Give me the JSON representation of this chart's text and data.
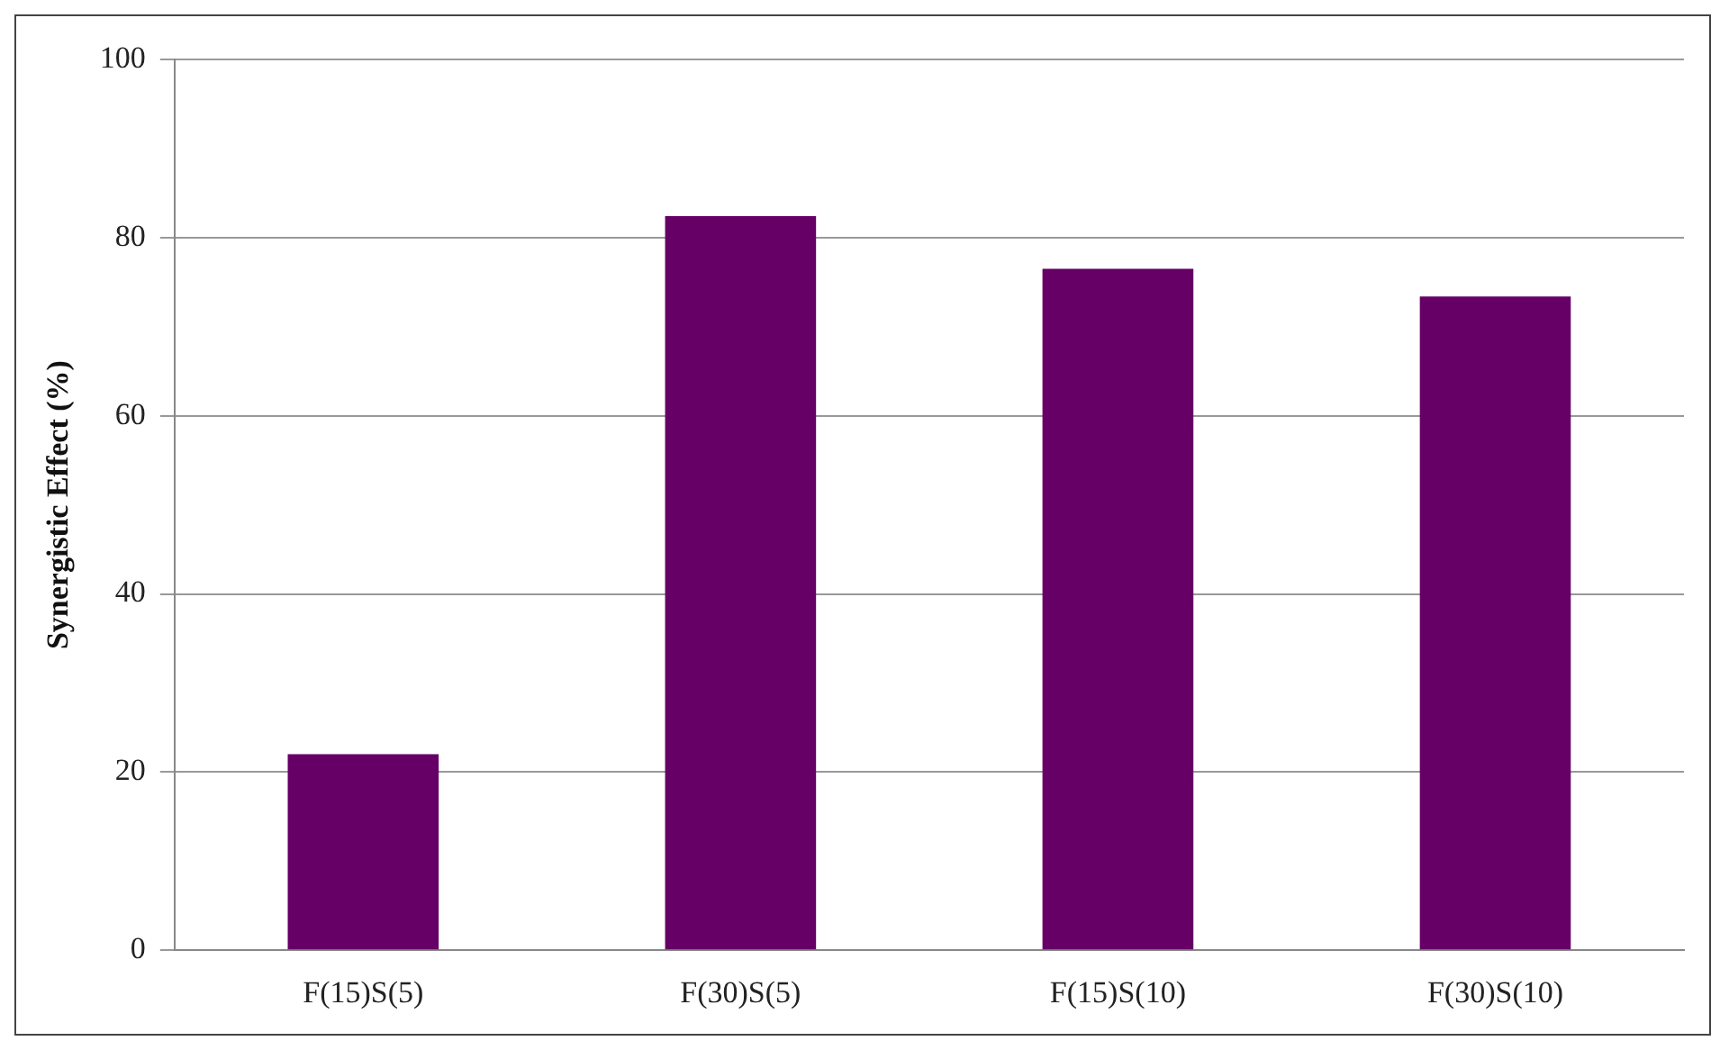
{
  "chart_data": {
    "type": "bar",
    "ylabel": "Synergistic Effect (%)",
    "categories": [
      "F(15)S(5)",
      "F(30)S(5)",
      "F(15)S(10)",
      "F(30)S(10)"
    ],
    "values": [
      22,
      82.4,
      76.5,
      73.4
    ],
    "color": "#660066",
    "ylim": [
      0,
      100
    ],
    "yticks": [
      0,
      20,
      40,
      60,
      80,
      100
    ],
    "grid": "y",
    "legend": false
  }
}
